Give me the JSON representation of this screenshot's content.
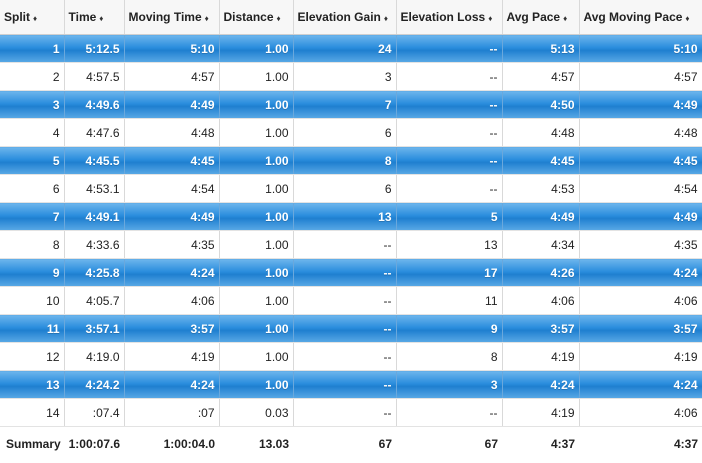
{
  "table": {
    "columns": [
      {
        "label": "Split"
      },
      {
        "label": "Time"
      },
      {
        "label": "Moving Time"
      },
      {
        "label": "Distance"
      },
      {
        "label": "Elevation Gain"
      },
      {
        "label": "Elevation Loss"
      },
      {
        "label": "Avg Pace"
      },
      {
        "label": "Avg Moving Pace"
      }
    ],
    "rows": [
      [
        "1",
        "5:12.5",
        "5:10",
        "1.00",
        "24",
        "--",
        "5:13",
        "5:10"
      ],
      [
        "2",
        "4:57.5",
        "4:57",
        "1.00",
        "3",
        "--",
        "4:57",
        "4:57"
      ],
      [
        "3",
        "4:49.6",
        "4:49",
        "1.00",
        "7",
        "--",
        "4:50",
        "4:49"
      ],
      [
        "4",
        "4:47.6",
        "4:48",
        "1.00",
        "6",
        "--",
        "4:48",
        "4:48"
      ],
      [
        "5",
        "4:45.5",
        "4:45",
        "1.00",
        "8",
        "--",
        "4:45",
        "4:45"
      ],
      [
        "6",
        "4:53.1",
        "4:54",
        "1.00",
        "6",
        "--",
        "4:53",
        "4:54"
      ],
      [
        "7",
        "4:49.1",
        "4:49",
        "1.00",
        "13",
        "5",
        "4:49",
        "4:49"
      ],
      [
        "8",
        "4:33.6",
        "4:35",
        "1.00",
        "--",
        "13",
        "4:34",
        "4:35"
      ],
      [
        "9",
        "4:25.8",
        "4:24",
        "1.00",
        "--",
        "17",
        "4:26",
        "4:24"
      ],
      [
        "10",
        "4:05.7",
        "4:06",
        "1.00",
        "--",
        "11",
        "4:06",
        "4:06"
      ],
      [
        "11",
        "3:57.1",
        "3:57",
        "1.00",
        "--",
        "9",
        "3:57",
        "3:57"
      ],
      [
        "12",
        "4:19.0",
        "4:19",
        "1.00",
        "--",
        "8",
        "4:19",
        "4:19"
      ],
      [
        "13",
        "4:24.2",
        "4:24",
        "1.00",
        "--",
        "3",
        "4:24",
        "4:24"
      ],
      [
        "14",
        ":07.4",
        ":07",
        "0.03",
        "--",
        "--",
        "4:19",
        "4:06"
      ]
    ],
    "summary": [
      "Summary",
      "1:00:07.6",
      "1:00:04.0",
      "13.03",
      "67",
      "67",
      "4:37",
      "4:37"
    ],
    "sort_icon": "sort-arrows-icon"
  }
}
